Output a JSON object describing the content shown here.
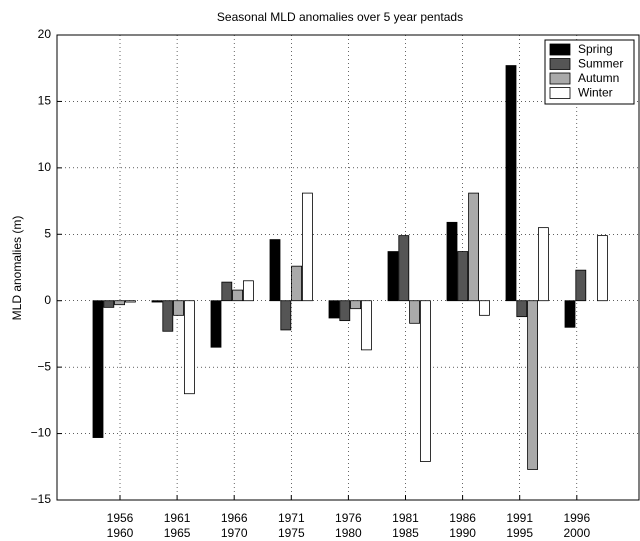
{
  "chart_data": {
    "type": "bar",
    "title": "Seasonal MLD anomalies over 5 year pentads",
    "y_label": "MLD anomalies (m)",
    "categories": [
      "1956\n1960",
      "1961\n1965",
      "1966\n1970",
      "1971\n1975",
      "1976\n1980",
      "1981\n1985",
      "1986\n1990",
      "1991\n1995",
      "1996\n2000"
    ],
    "series": [
      {
        "name": "Spring",
        "color": "#000000",
        "values": [
          -10.3,
          -0.1,
          -3.5,
          4.6,
          -1.3,
          3.7,
          5.9,
          17.7,
          -2.0
        ]
      },
      {
        "name": "Summer",
        "color": "#555555",
        "values": [
          -0.5,
          -2.3,
          1.4,
          -2.2,
          -1.5,
          4.9,
          3.7,
          -1.2,
          2.3
        ]
      },
      {
        "name": "Autumn",
        "color": "#aaaaaa",
        "values": [
          -0.3,
          -1.1,
          0.8,
          2.6,
          -0.6,
          -1.7,
          8.1,
          -12.7,
          0.0
        ]
      },
      {
        "name": "Winter",
        "color": "#ffffff",
        "values": [
          -0.1,
          -7.0,
          1.5,
          8.1,
          -3.7,
          -12.1,
          -1.1,
          5.5,
          4.9
        ]
      }
    ],
    "ylim": [
      -15,
      20
    ],
    "yticks": [
      {
        "value": -15,
        "label": "−15"
      },
      {
        "value": -10,
        "label": "−10"
      },
      {
        "value": -5,
        "label": "−5"
      },
      0,
      5,
      10,
      15,
      20
    ],
    "grid": true,
    "legend": "upper right"
  }
}
